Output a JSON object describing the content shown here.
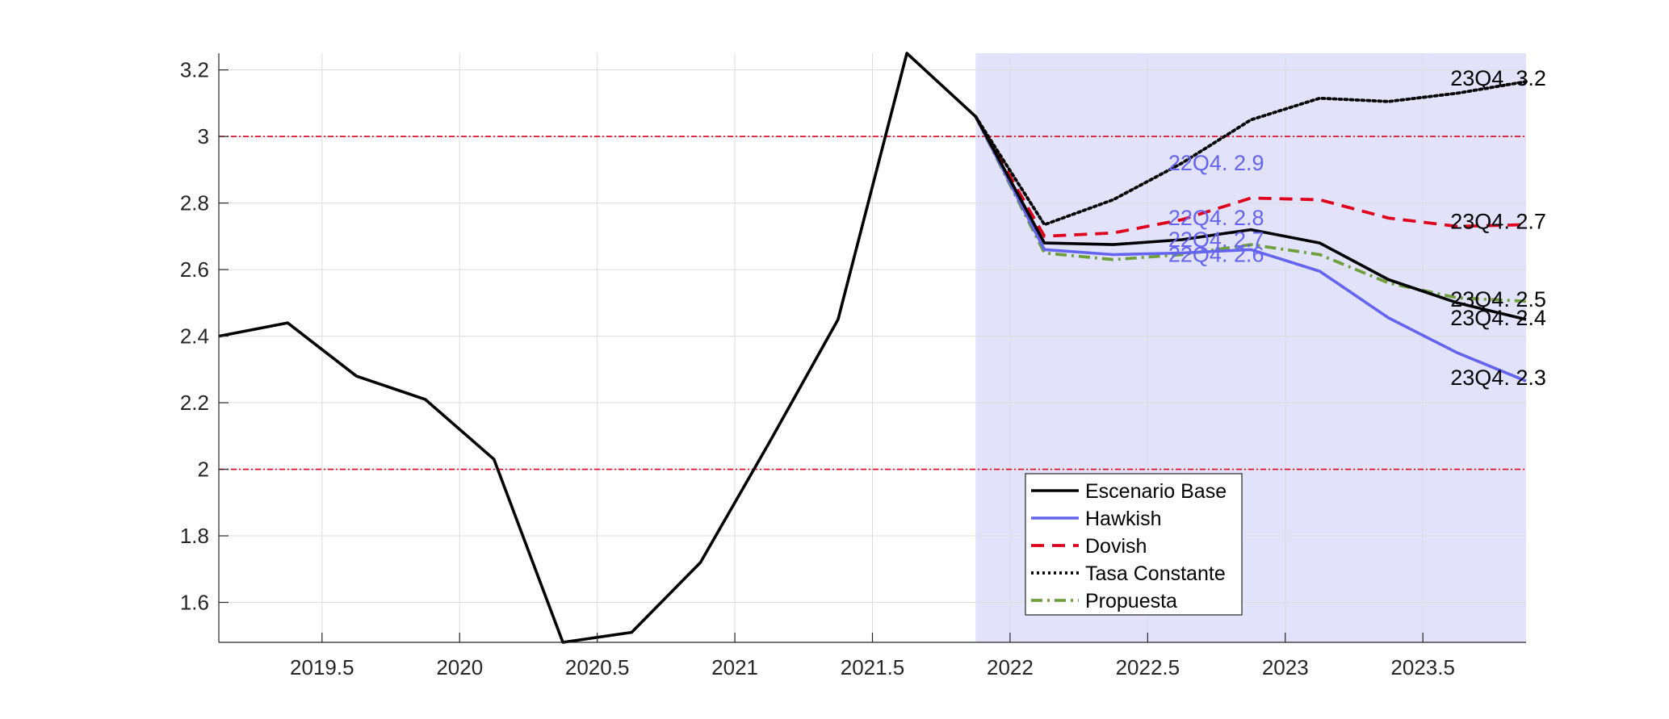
{
  "chart_data": {
    "type": "line",
    "title": "",
    "xlabel": "",
    "ylabel": "",
    "xlim": [
      2019.125,
      2023.875
    ],
    "ylim": [
      1.48,
      3.25
    ],
    "x_ticks": [
      2019.5,
      2020,
      2020.5,
      2021,
      2021.5,
      2022,
      2022.5,
      2023,
      2023.5
    ],
    "x_tick_labels": [
      "2019.5",
      "2020",
      "2020.5",
      "2021",
      "2021.5",
      "2022",
      "2022.5",
      "2023",
      "2023.5"
    ],
    "y_ticks": [
      1.6,
      1.8,
      2.0,
      2.2,
      2.4,
      2.6,
      2.8,
      3.0,
      3.2
    ],
    "y_tick_labels": [
      "1.6",
      "1.8",
      "2",
      "2.2",
      "2.4",
      "2.6",
      "2.8",
      "3",
      "3.2"
    ],
    "grid": true,
    "forecast_region": {
      "x_start": 2021.875,
      "x_end": 2023.875,
      "color": "#e2e2fb"
    },
    "reference_lines": [
      {
        "y": 3.0,
        "color": "#e0001b"
      },
      {
        "y": 2.0,
        "color": "#e0001b"
      }
    ],
    "series": [
      {
        "name": "Escenario Base",
        "color": "#000000",
        "style": "solid",
        "x": [
          2019.125,
          2019.375,
          2019.625,
          2019.875,
          2020.125,
          2020.375,
          2020.625,
          2020.875,
          2021.125,
          2021.375,
          2021.625,
          2021.875,
          2022.125,
          2022.375,
          2022.625,
          2022.875,
          2023.125,
          2023.375,
          2023.625,
          2023.875
        ],
        "y": [
          2.4,
          2.44,
          2.28,
          2.21,
          2.03,
          1.48,
          1.51,
          1.72,
          2.08,
          2.45,
          3.25,
          3.06,
          2.68,
          2.675,
          2.69,
          2.72,
          2.68,
          2.57,
          2.5,
          2.45
        ]
      },
      {
        "name": "Hawkish",
        "color": "#6464f0",
        "style": "solid",
        "x": [
          2021.875,
          2022.125,
          2022.375,
          2022.625,
          2022.875,
          2023.125,
          2023.375,
          2023.625,
          2023.875
        ],
        "y": [
          3.06,
          2.66,
          2.645,
          2.65,
          2.66,
          2.595,
          2.455,
          2.35,
          2.265
        ]
      },
      {
        "name": "Dovish",
        "color": "#e0001b",
        "style": "dashed",
        "x": [
          2021.875,
          2022.125,
          2022.375,
          2022.625,
          2022.875,
          2023.125,
          2023.375,
          2023.625,
          2023.875
        ],
        "y": [
          3.06,
          2.7,
          2.71,
          2.75,
          2.815,
          2.81,
          2.755,
          2.73,
          2.735
        ]
      },
      {
        "name": "Tasa Constante",
        "color": "#000000",
        "style": "dotted",
        "x": [
          2021.875,
          2022.125,
          2022.375,
          2022.625,
          2022.875,
          2023.125,
          2023.375,
          2023.625,
          2023.875
        ],
        "y": [
          3.06,
          2.735,
          2.81,
          2.92,
          3.05,
          3.115,
          3.105,
          3.13,
          3.165
        ]
      },
      {
        "name": "Propuesta",
        "color": "#70a03c",
        "style": "dashdot",
        "x": [
          2021.875,
          2022.125,
          2022.375,
          2022.625,
          2022.875,
          2023.125,
          2023.375,
          2023.625,
          2023.875
        ],
        "y": [
          3.06,
          2.65,
          2.63,
          2.645,
          2.675,
          2.645,
          2.56,
          2.515,
          2.505
        ]
      }
    ],
    "annotations": [
      {
        "text": "22Q4. 2.9",
        "x": 2022.575,
        "y": 2.92,
        "color": "#6464f0"
      },
      {
        "text": "22Q4. 2.8",
        "x": 2022.575,
        "y": 2.755,
        "color": "#6464f0"
      },
      {
        "text": "22Q4. 2.7",
        "x": 2022.575,
        "y": 2.69,
        "color": "#6464f0"
      },
      {
        "text": "22Q4. 2.6",
        "x": 2022.575,
        "y": 2.645,
        "color": "#6464f0"
      },
      {
        "text": "23Q4. 3.2",
        "x": 2023.6,
        "y": 3.175,
        "color": "#000000"
      },
      {
        "text": "23Q4. 2.7",
        "x": 2023.6,
        "y": 2.745,
        "color": "#000000"
      },
      {
        "text": "23Q4. 2.5",
        "x": 2023.6,
        "y": 2.51,
        "color": "#000000"
      },
      {
        "text": "23Q4. 2.4",
        "x": 2023.6,
        "y": 2.455,
        "color": "#000000"
      },
      {
        "text": "23Q4. 2.3",
        "x": 2023.6,
        "y": 2.275,
        "color": "#000000"
      }
    ],
    "legend": {
      "placement": "bottom-center",
      "entries": [
        "Escenario Base",
        "Hawkish",
        "Dovish",
        "Tasa Constante",
        "Propuesta"
      ]
    }
  }
}
